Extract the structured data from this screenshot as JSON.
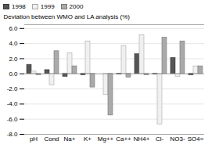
{
  "chart_data": {
    "type": "bar",
    "categories": [
      "pH",
      "Cond",
      "Na+",
      "K+",
      "Mg++",
      "Ca++",
      "NH4+",
      "Cl-",
      "NO3-",
      "SO4="
    ],
    "series": [
      {
        "name": "1998",
        "color": "#555555",
        "values": [
          1.2,
          0.5,
          -0.4,
          -0.2,
          0.0,
          -0.1,
          2.6,
          -0.1,
          2.1,
          -0.2
        ]
      },
      {
        "name": "1999",
        "color": "#f0f0f0",
        "values": [
          0.3,
          -1.5,
          2.7,
          4.3,
          -2.8,
          3.7,
          5.1,
          -6.7,
          -0.4,
          1.0
        ]
      },
      {
        "name": "2000",
        "color": "#aaaaaa",
        "values": [
          -0.2,
          3.0,
          1.0,
          -1.8,
          -5.5,
          -0.5,
          -0.2,
          4.8,
          4.3,
          1.0
        ]
      }
    ],
    "ylabel": "Deviation between WMO and LA analysis (%)",
    "ylim": [
      -8,
      6.5
    ],
    "yticks": [
      {
        "value": -8,
        "label": "-8.0"
      },
      {
        "value": -6,
        "label": "-6.0"
      },
      {
        "value": -4,
        "label": "-4.0"
      },
      {
        "value": -2,
        "label": "-2.0"
      },
      {
        "value": 0,
        "label": "0.0"
      },
      {
        "value": 2,
        "label": "2.0"
      },
      {
        "value": 4,
        "label": "4.0"
      },
      {
        "value": 6,
        "label": "6.0"
      }
    ],
    "grid": true,
    "legend": "upper left"
  }
}
